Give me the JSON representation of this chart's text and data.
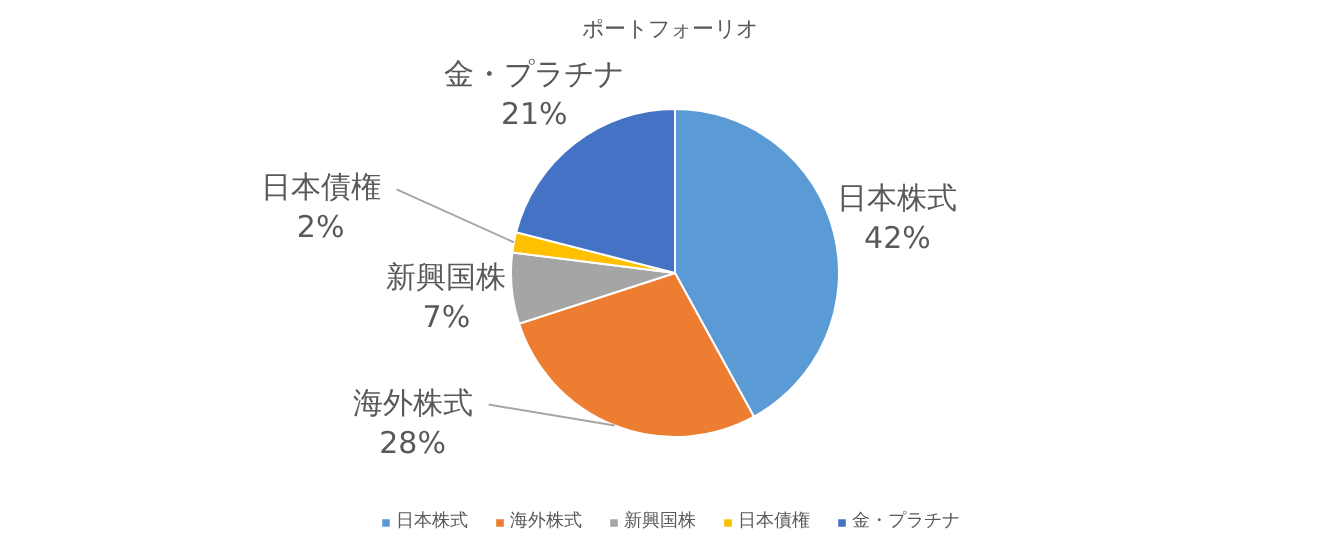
{
  "chart_data": {
    "type": "pie",
    "title": "ポートフォーリオ",
    "categories": [
      "日本株式",
      "海外株式",
      "新興国株",
      "日本債権",
      "金・プラチナ"
    ],
    "values": [
      42,
      28,
      7,
      2,
      21
    ],
    "value_labels": [
      "42%",
      "28%",
      "7%",
      "2%",
      "21%"
    ],
    "colors": [
      "#5b9bd5",
      "#ed7d31",
      "#a5a5a5",
      "#ffc000",
      "#4472c4"
    ],
    "legend": "bottom"
  }
}
